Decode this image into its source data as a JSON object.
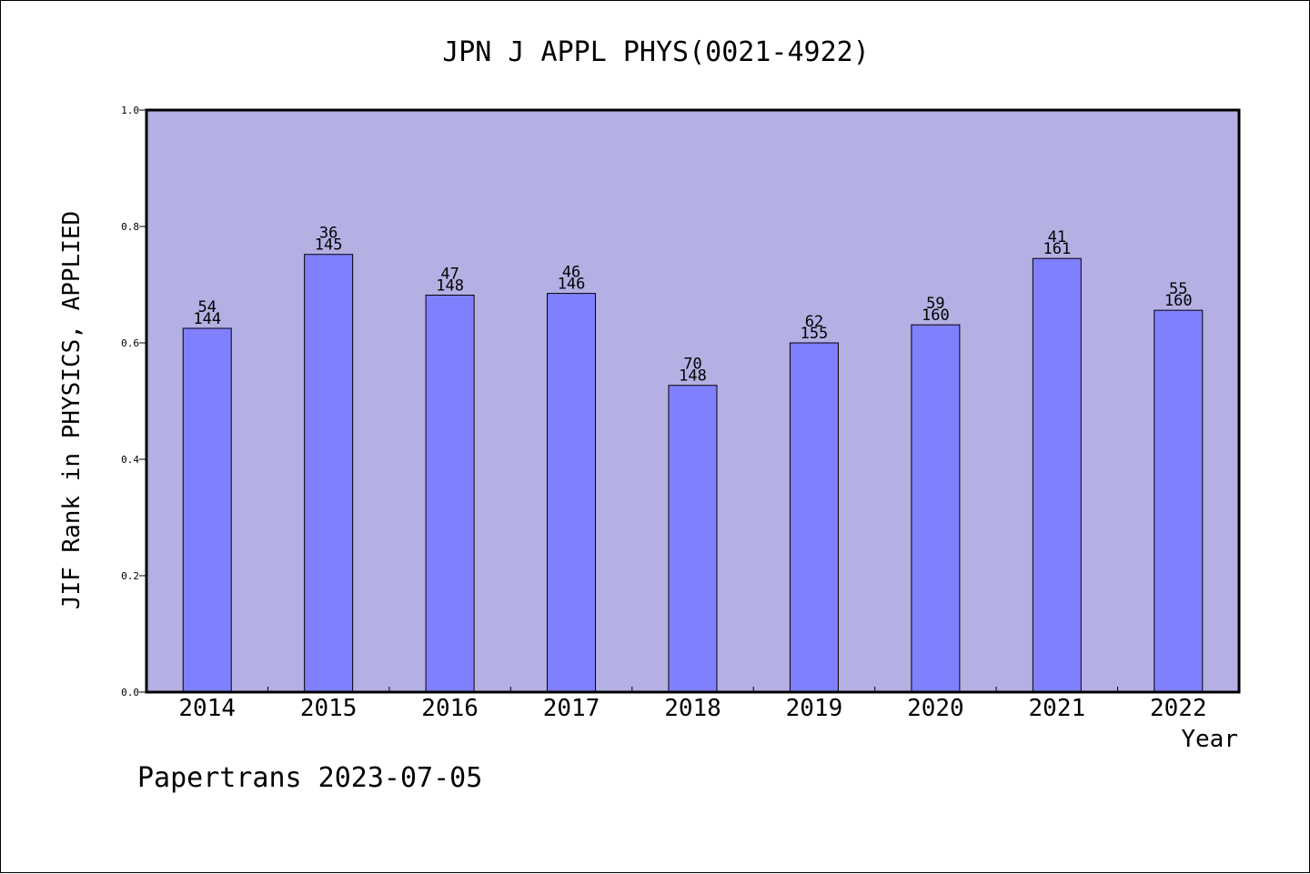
{
  "chart_data": {
    "type": "bar",
    "title": "JPN J APPL PHYS(0021-4922)",
    "xlabel": "Year",
    "ylabel": "JIF Rank in PHYSICS, APPLIED",
    "categories": [
      "2014",
      "2015",
      "2016",
      "2017",
      "2018",
      "2019",
      "2020",
      "2021",
      "2022"
    ],
    "values": [
      0.625,
      0.752,
      0.682,
      0.685,
      0.527,
      0.6,
      0.631,
      0.745,
      0.656
    ],
    "rank": [
      "54",
      "36",
      "47",
      "46",
      "70",
      "62",
      "59",
      "41",
      "55"
    ],
    "total": [
      "144",
      "145",
      "148",
      "146",
      "148",
      "155",
      "160",
      "161",
      "160"
    ],
    "ylim": [
      0,
      1.0
    ],
    "yticks": [
      "0.0",
      "0.2",
      "0.4",
      "0.6",
      "0.8",
      "1.0"
    ],
    "grid": false,
    "colors": {
      "plot_background": "#b5b0e3",
      "bar_fill": "#8080ff",
      "bar_stroke": "#000000"
    }
  },
  "footer": "Papertrans 2023-07-05"
}
